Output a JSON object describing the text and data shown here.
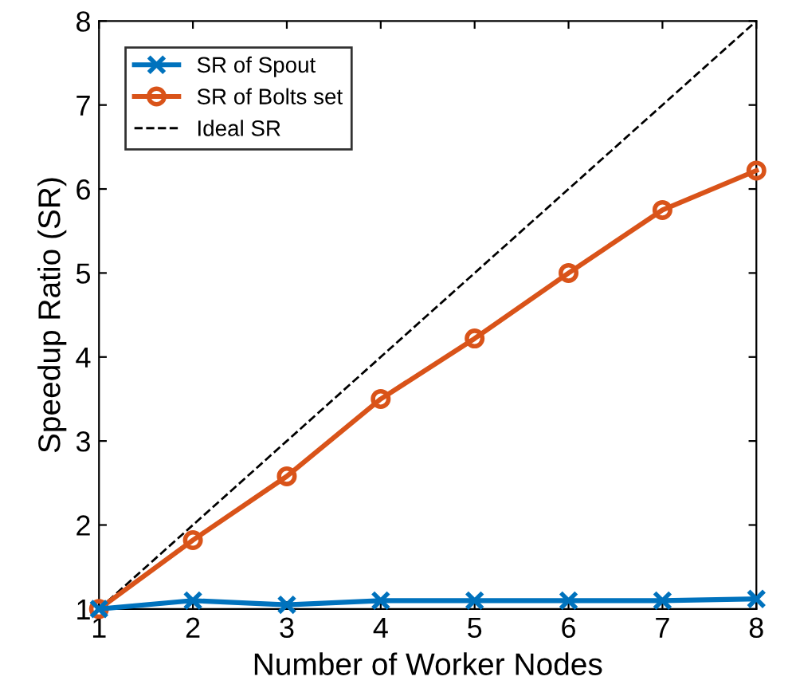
{
  "chart_data": {
    "type": "line",
    "xlabel": "Number of Worker Nodes",
    "ylabel": "Speedup Ratio (SR)",
    "x": [
      1,
      2,
      3,
      4,
      5,
      6,
      7,
      8
    ],
    "series": [
      {
        "name": "SR of Spout",
        "color": "#0072bd",
        "marker": "cross",
        "line_style": "solid",
        "values": [
          1,
          1.1,
          1.05,
          1.1,
          1.1,
          1.1,
          1.1,
          1.12
        ]
      },
      {
        "name": "SR of Bolts set",
        "color": "#d95319",
        "marker": "circle",
        "line_style": "solid",
        "values": [
          1,
          1.82,
          2.58,
          3.5,
          4.22,
          5.0,
          5.75,
          6.22
        ]
      },
      {
        "name": "Ideal SR",
        "color": "#000000",
        "marker": "none",
        "line_style": "dashed",
        "values": [
          1,
          2,
          3,
          4,
          5,
          6,
          7,
          8
        ]
      }
    ],
    "xlim": [
      1,
      8
    ],
    "ylim": [
      1,
      8
    ],
    "xticks": [
      1,
      2,
      3,
      4,
      5,
      6,
      7,
      8
    ],
    "yticks": [
      1,
      2,
      3,
      4,
      5,
      6,
      7,
      8
    ],
    "grid": false,
    "legend": "top left"
  }
}
